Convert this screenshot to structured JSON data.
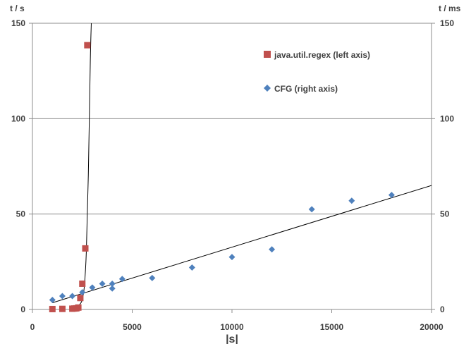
{
  "chart_data": {
    "type": "scatter",
    "xlabel": "|s|",
    "ylabel_left": "t / s",
    "ylabel_right": "t / ms",
    "xlim": [
      0,
      20000
    ],
    "ylim_left": [
      0,
      150
    ],
    "ylim_right": [
      0,
      150
    ],
    "x_ticks": [
      "0",
      "5000",
      "10000",
      "15000",
      "20000"
    ],
    "y_ticks_left": [
      "0",
      "50",
      "100",
      "150"
    ],
    "y_ticks_right": [
      "0",
      "50",
      "100",
      "150"
    ],
    "grid": "horizontal",
    "legend_position": "top-right",
    "series": [
      {
        "name": "java.util.regex (left axis)",
        "axis": "left",
        "marker": "square",
        "color": "#c0504d",
        "points": [
          {
            "x": 1000,
            "y": 0.2
          },
          {
            "x": 1500,
            "y": 0.3
          },
          {
            "x": 2000,
            "y": 0.4
          },
          {
            "x": 2100,
            "y": 0.5
          },
          {
            "x": 2200,
            "y": 0.6
          },
          {
            "x": 2300,
            "y": 1.0
          },
          {
            "x": 2400,
            "y": 6.0
          },
          {
            "x": 2500,
            "y": 13.5
          },
          {
            "x": 2650,
            "y": 32.0
          },
          {
            "x": 2750,
            "y": 138.5
          }
        ]
      },
      {
        "name": "CFG (right axis)",
        "axis": "right",
        "marker": "diamond",
        "color": "#4f81bd",
        "points": [
          {
            "x": 1000,
            "y": 5.0
          },
          {
            "x": 1500,
            "y": 7.0
          },
          {
            "x": 2000,
            "y": 7.0
          },
          {
            "x": 2500,
            "y": 9.0
          },
          {
            "x": 3000,
            "y": 11.5
          },
          {
            "x": 3500,
            "y": 13.5
          },
          {
            "x": 4000,
            "y": 11.0
          },
          {
            "x": 4000,
            "y": 13.5
          },
          {
            "x": 4500,
            "y": 16.0
          },
          {
            "x": 6000,
            "y": 16.5
          },
          {
            "x": 8000,
            "y": 22.0
          },
          {
            "x": 10000,
            "y": 27.5
          },
          {
            "x": 12000,
            "y": 31.5
          },
          {
            "x": 14000,
            "y": 52.5
          },
          {
            "x": 16000,
            "y": 57.0
          },
          {
            "x": 18000,
            "y": 60.0
          }
        ]
      }
    ],
    "trendlines": [
      {
        "series": "java.util.regex (left axis)",
        "type": "exponential",
        "color": "#000000",
        "points": [
          {
            "x": 2000,
            "y": 0.3
          },
          {
            "x": 2200,
            "y": 1.0
          },
          {
            "x": 2400,
            "y": 3.0
          },
          {
            "x": 2500,
            "y": 5.5
          },
          {
            "x": 2600,
            "y": 12.0
          },
          {
            "x": 2700,
            "y": 30.0
          },
          {
            "x": 2800,
            "y": 70.0
          },
          {
            "x": 2900,
            "y": 130.0
          },
          {
            "x": 2950,
            "y": 150.0
          }
        ]
      },
      {
        "series": "CFG (right axis)",
        "type": "linear",
        "color": "#000000",
        "points": [
          {
            "x": 1000,
            "y": 3.5
          },
          {
            "x": 20000,
            "y": 65.0
          }
        ]
      }
    ]
  }
}
